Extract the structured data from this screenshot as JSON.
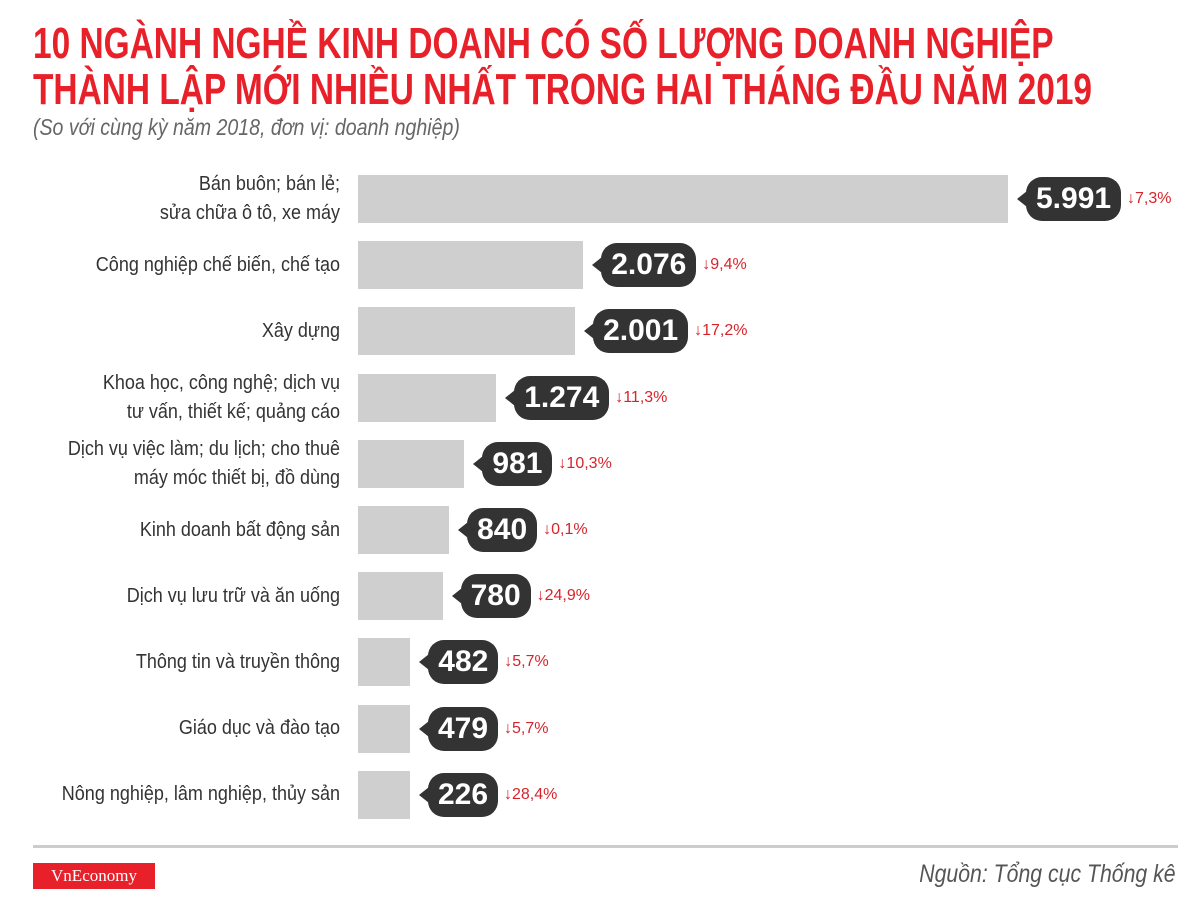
{
  "chart_data": {
    "type": "bar",
    "orientation": "horizontal",
    "title": "10 NGÀNH NGHỀ KINH DOANH CÓ SỐ LƯỢNG DOANH NGHIỆP THÀNH LẬP MỚI NHIỀU NHẤT TRONG HAI THÁNG ĐẦU NĂM 2019",
    "title_lines": [
      "10 NGÀNH NGHỀ KINH DOANH CÓ SỐ LƯỢNG DOANH NGHIỆP",
      "THÀNH LẬP MỚI NHIỀU NHẤT TRONG HAI THÁNG ĐẦU NĂM 2019"
    ],
    "subtitle": "(So với cùng kỳ năm 2018, đơn vị: doanh nghiệp)",
    "categories": [
      "Bán buôn; bán lẻ;\nsửa chữa ô tô, xe máy",
      "Công nghiệp chế biến, chế tạo",
      "Xây dựng",
      "Khoa học, công nghệ; dịch vụ\ntư vấn, thiết kế; quảng cáo",
      "Dịch vụ việc làm; du lịch; cho thuê\nmáy móc thiết bị, đồ dùng",
      "Kinh doanh bất động sản",
      "Dịch vụ lưu trữ và ăn uống",
      "Thông tin và truyền thông",
      "Giáo dục và đào tạo",
      "Nông nghiệp, lâm nghiệp, thủy sản"
    ],
    "values": [
      5991,
      2076,
      2001,
      1274,
      981,
      840,
      780,
      482,
      479,
      226
    ],
    "value_labels": [
      "5.991",
      "2.076",
      "2.001",
      "1.274",
      "981",
      "840",
      "780",
      "482",
      "479",
      "226"
    ],
    "change_labels": [
      "↓7,3%",
      "↓9,4%",
      "↓17,2%",
      "↓11,3%",
      "↓10,3%",
      "↓0,1%",
      "↓24,9%",
      "↓5,7%",
      "↓5,7%",
      "↓28,4%"
    ],
    "grid": false,
    "colors": {
      "bar": "#cfcfcf",
      "label_bg": "#333333",
      "title": "#e8202a",
      "change": "#d7242b"
    }
  },
  "footer": {
    "logo": "VnEconomy",
    "source": "Nguồn: Tổng cục Thống kê"
  }
}
